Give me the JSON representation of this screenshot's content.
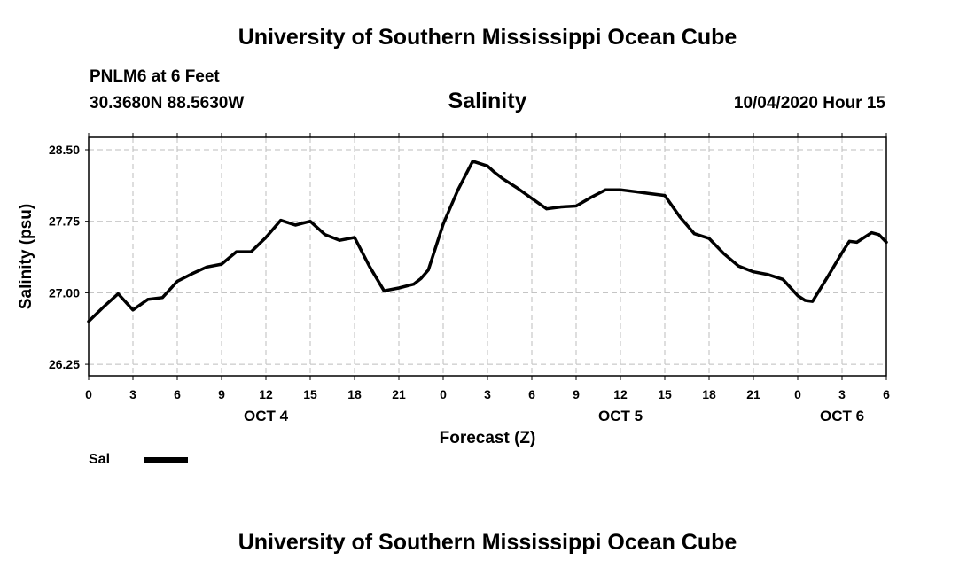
{
  "header": {
    "top_title": "University of Southern Mississippi Ocean Cube",
    "station": "PNLM6 at 6 Feet",
    "coordinates": "30.3680N 88.5630W",
    "datetime": "10/04/2020 Hour 15",
    "bottom_title": "University of Southern Mississippi Ocean Cube"
  },
  "legend": {
    "label": "Sal"
  },
  "chart_data": {
    "type": "line",
    "title": "Salinity",
    "xlabel": "Forecast (Z)",
    "ylabel": "Salinity (psu)",
    "ylim": [
      26.13,
      28.63
    ],
    "xlim": [
      0,
      54
    ],
    "y_ticks": [
      "26.25",
      "27.00",
      "27.75",
      "28.50"
    ],
    "x_tick_labels": [
      "0",
      "3",
      "6",
      "9",
      "12",
      "15",
      "18",
      "21",
      "0",
      "3",
      "6",
      "9",
      "12",
      "15",
      "18",
      "21",
      "0",
      "3",
      "6"
    ],
    "day_labels": [
      {
        "label": "OCT 4",
        "hour": 12
      },
      {
        "label": "OCT 5",
        "hour": 36
      },
      {
        "label": "OCT 6",
        "hour": 51
      }
    ],
    "grid": true,
    "legend_position": "bottom-left",
    "series": [
      {
        "name": "Sal",
        "color": "#000000",
        "x": [
          0,
          1,
          2,
          3,
          4,
          5,
          6,
          7,
          8,
          9,
          10,
          11,
          12,
          13,
          14,
          15,
          16,
          17,
          18,
          19,
          20,
          21,
          22,
          22.5,
          23,
          24,
          25,
          26,
          27,
          27.5,
          28,
          29,
          30,
          31,
          32,
          33,
          34,
          35,
          36,
          37,
          38,
          39,
          40,
          41,
          42,
          43,
          44,
          45,
          46,
          47,
          48,
          48.5,
          49,
          50,
          51,
          51.5,
          52,
          53,
          53.5,
          54
        ],
        "values": [
          26.7,
          26.85,
          26.99,
          26.82,
          26.93,
          26.95,
          27.12,
          27.2,
          27.27,
          27.3,
          27.43,
          27.43,
          27.58,
          27.76,
          27.71,
          27.75,
          27.61,
          27.55,
          27.58,
          27.28,
          27.02,
          27.05,
          27.09,
          27.15,
          27.24,
          27.72,
          28.08,
          28.38,
          28.33,
          28.26,
          28.2,
          28.1,
          27.99,
          27.88,
          27.9,
          27.91,
          28.0,
          28.08,
          28.08,
          28.06,
          28.04,
          28.02,
          27.8,
          27.62,
          27.57,
          27.41,
          27.28,
          27.22,
          27.19,
          27.14,
          26.97,
          26.92,
          26.91,
          27.16,
          27.42,
          27.54,
          27.53,
          27.63,
          27.61,
          27.53
        ]
      }
    ]
  }
}
